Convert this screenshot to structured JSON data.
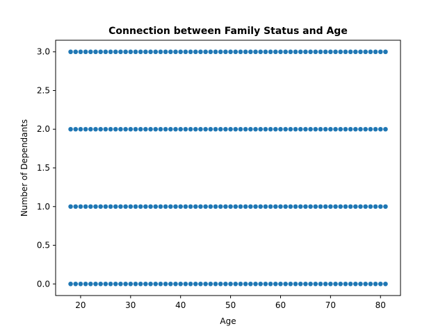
{
  "chart_data": {
    "type": "scatter",
    "title": "Connection between Family Status and Age",
    "xlabel": "Age",
    "ylabel": "Number of Dependants",
    "xlim": [
      15,
      84
    ],
    "ylim": [
      -0.15,
      3.15
    ],
    "xticks": [
      20,
      30,
      40,
      50,
      60,
      70,
      80
    ],
    "yticks": [
      0.0,
      0.5,
      1.0,
      1.5,
      2.0,
      2.5,
      3.0
    ],
    "ytick_labels": [
      "0.0",
      "0.5",
      "1.0",
      "1.5",
      "2.0",
      "2.5",
      "3.0"
    ],
    "grid": false,
    "x_range": [
      18,
      81
    ],
    "y_levels": [
      0,
      1,
      2,
      3
    ],
    "marker_color": "#1f77b4"
  }
}
